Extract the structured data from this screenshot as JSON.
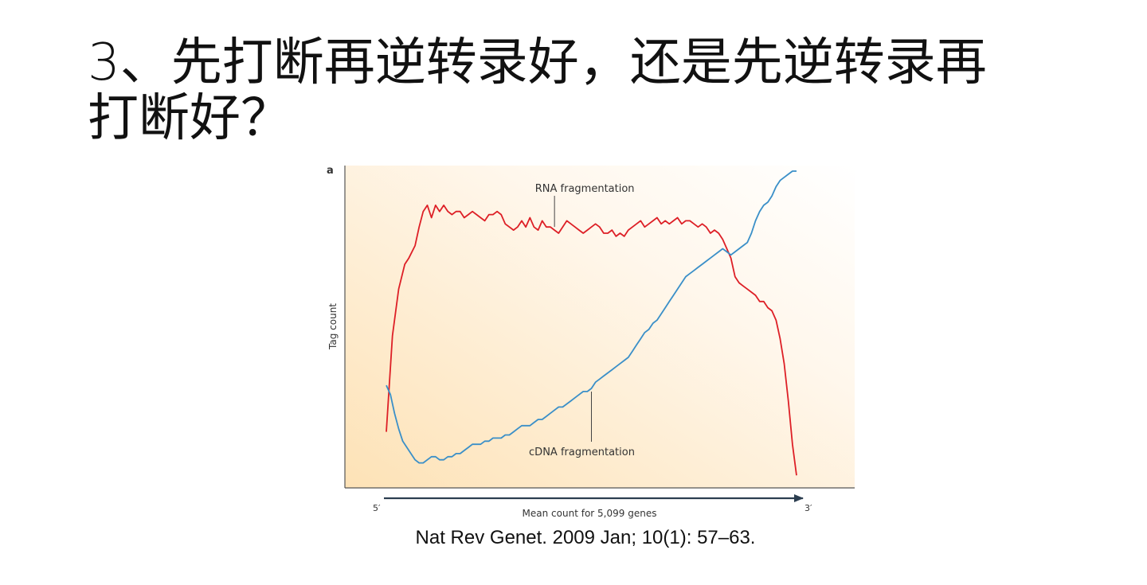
{
  "slide": {
    "title_line1": "3、先打断再逆转录好，还是先逆转录再",
    "title_line2": "打断好？",
    "citation": "Nat Rev Genet. 2009 Jan; 10(1): 57–63."
  },
  "chart_data": {
    "type": "line",
    "panel_label": "a",
    "ylabel": "Tag count",
    "xlabel": "Mean count for 5,099 genes",
    "x_start_label": "5′",
    "x_end_label": "3′",
    "xlim": [
      0,
      100
    ],
    "ylim": [
      0,
      100
    ],
    "colors": {
      "RNA fragmentation": "#dd1f26",
      "cDNA fragmentation": "#3a8fc8",
      "background_fill": "#fde2b6"
    },
    "series": [
      {
        "name": "RNA fragmentation",
        "x": [
          0,
          1.5,
          3,
          4.5,
          5.5,
          7,
          8,
          9,
          10,
          11,
          12,
          13,
          14,
          15,
          16,
          17,
          18,
          19,
          20,
          21,
          22,
          23,
          24,
          25,
          26,
          27,
          28,
          29,
          30,
          31,
          32,
          33,
          34,
          35,
          36,
          37,
          38,
          39,
          40,
          41,
          42,
          43,
          44,
          45,
          46,
          47,
          48,
          49,
          50,
          51,
          52,
          53,
          54,
          55,
          56,
          57,
          58,
          59,
          60,
          61,
          62,
          63,
          64,
          65,
          66,
          67,
          68,
          69,
          70,
          71,
          72,
          73,
          74,
          75,
          76,
          77,
          78,
          79,
          80,
          81,
          82,
          83,
          84,
          85,
          86,
          87,
          88,
          89,
          90,
          91,
          92,
          93,
          94,
          95,
          96,
          97,
          98,
          99,
          100
        ],
        "values": [
          16,
          47,
          62,
          70,
          72,
          76,
          82,
          87,
          89,
          85,
          89,
          87,
          89,
          87,
          86,
          87,
          87,
          85,
          86,
          87,
          86,
          85,
          84,
          86,
          86,
          87,
          86,
          83,
          82,
          81,
          82,
          84,
          82,
          85,
          82,
          81,
          84,
          82,
          82,
          81,
          80,
          82,
          84,
          83,
          82,
          81,
          80,
          81,
          82,
          83,
          82,
          80,
          80,
          81,
          79,
          80,
          79,
          81,
          82,
          83,
          84,
          82,
          83,
          84,
          85,
          83,
          84,
          83,
          84,
          85,
          83,
          84,
          84,
          83,
          82,
          83,
          82,
          80,
          81,
          80,
          78,
          75,
          72,
          66,
          64,
          63,
          62,
          61,
          60,
          58,
          58,
          56,
          55,
          52,
          46,
          38,
          26,
          12,
          2
        ]
      },
      {
        "name": "cDNA fragmentation",
        "x": [
          0,
          1,
          2,
          3,
          4,
          5,
          6,
          7,
          8,
          9,
          10,
          11,
          12,
          13,
          14,
          15,
          16,
          17,
          18,
          19,
          20,
          21,
          22,
          23,
          24,
          25,
          26,
          27,
          28,
          29,
          30,
          31,
          32,
          33,
          34,
          35,
          36,
          37,
          38,
          39,
          40,
          41,
          42,
          43,
          44,
          45,
          46,
          47,
          48,
          49,
          50,
          51,
          52,
          53,
          54,
          55,
          56,
          57,
          58,
          59,
          60,
          61,
          62,
          63,
          64,
          65,
          66,
          67,
          68,
          69,
          70,
          71,
          72,
          73,
          74,
          75,
          76,
          77,
          78,
          79,
          80,
          81,
          82,
          83,
          84,
          85,
          86,
          87,
          88,
          89,
          90,
          91,
          92,
          93,
          94,
          95,
          96,
          97,
          98,
          99,
          100
        ],
        "values": [
          31,
          28,
          22,
          17,
          13,
          11,
          9,
          7,
          6,
          6,
          7,
          8,
          8,
          7,
          7,
          8,
          8,
          9,
          9,
          10,
          11,
          12,
          12,
          12,
          13,
          13,
          14,
          14,
          14,
          15,
          15,
          16,
          17,
          18,
          18,
          18,
          19,
          20,
          20,
          21,
          22,
          23,
          24,
          24,
          25,
          26,
          27,
          28,
          29,
          29,
          30,
          32,
          33,
          34,
          35,
          36,
          37,
          38,
          39,
          40,
          42,
          44,
          46,
          48,
          49,
          51,
          52,
          54,
          56,
          58,
          60,
          62,
          64,
          66,
          67,
          68,
          69,
          70,
          71,
          72,
          73,
          74,
          75,
          74,
          73,
          74,
          75,
          76,
          77,
          80,
          84,
          87,
          89,
          90,
          92,
          95,
          97,
          98,
          99,
          100,
          100
        ]
      }
    ],
    "annotations": [
      {
        "text": "RNA fragmentation",
        "series": "RNA fragmentation",
        "point_x": 41
      },
      {
        "text": "cDNA fragmentation",
        "series": "cDNA fragmentation",
        "point_x": 50
      }
    ]
  }
}
